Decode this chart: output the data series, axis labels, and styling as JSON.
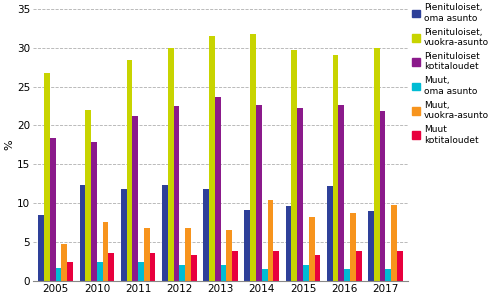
{
  "years": [
    "2005",
    "2010",
    "2011",
    "2012",
    "2013",
    "2014",
    "2015",
    "2016",
    "2017"
  ],
  "series": {
    "Pienituloiset,\noma asunto": [
      8.5,
      12.3,
      11.8,
      12.3,
      11.8,
      9.1,
      9.6,
      12.2,
      9.0
    ],
    "Pienituloiset,\nvuokra-asunto": [
      26.7,
      22.0,
      28.4,
      30.0,
      31.5,
      31.8,
      29.7,
      29.0,
      30.0
    ],
    "Pienituloiset\nkotitaloudet": [
      18.4,
      17.9,
      21.2,
      22.5,
      23.7,
      22.6,
      22.3,
      22.6,
      21.9
    ],
    "Muut,\noma asunto": [
      1.7,
      2.4,
      2.4,
      2.0,
      2.1,
      1.6,
      2.0,
      1.6,
      1.5
    ],
    "Muut,\nvuokra-asunto": [
      4.8,
      7.6,
      6.8,
      6.8,
      6.6,
      10.4,
      8.2,
      8.7,
      9.8
    ],
    "Muut\nkotitaloudet": [
      2.5,
      3.6,
      3.6,
      3.4,
      3.9,
      3.9,
      3.3,
      3.8,
      3.9
    ]
  },
  "colors": {
    "Pienituloiset,\noma asunto": "#2e4099",
    "Pienituloiset,\nvuokra-asunto": "#c8d400",
    "Pienituloiset\nkotitaloudet": "#8b1a8b",
    "Muut,\noma asunto": "#00bcd4",
    "Muut,\nvuokra-asunto": "#f7941d",
    "Muut\nkotitaloudet": "#e8003d"
  },
  "ylabel": "%",
  "ylim": [
    0,
    35
  ],
  "yticks": [
    0,
    5,
    10,
    15,
    20,
    25,
    30,
    35
  ],
  "background_color": "#ffffff",
  "grid_color": "#b0b0b0"
}
